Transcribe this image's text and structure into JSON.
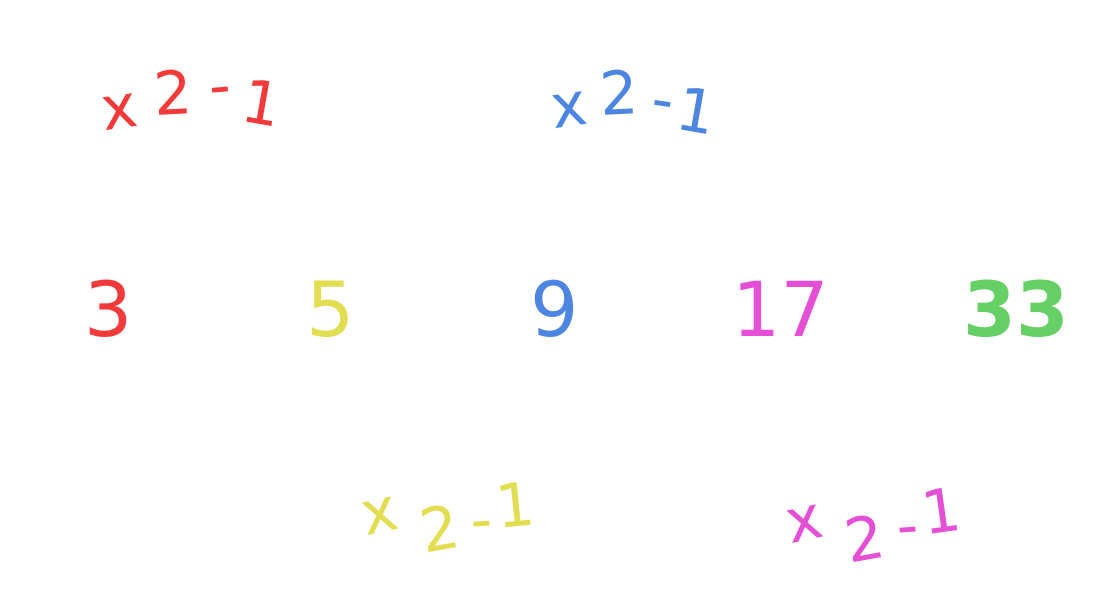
{
  "sequence": [
    {
      "value": "3",
      "color": "#f23a3a"
    },
    {
      "value": "5",
      "color": "#e3dd52"
    },
    {
      "value": "9",
      "color": "#4d86e0"
    },
    {
      "value": "17",
      "color": "#e44fd6"
    },
    {
      "value": "33",
      "color": "#66cf66"
    }
  ],
  "operations": [
    {
      "times": "x",
      "factor": "2",
      "minus": "-",
      "subtrahend": "1",
      "color": "#f23a3a"
    },
    {
      "times": "x",
      "factor": "2",
      "minus": "-",
      "subtrahend": "1",
      "color": "#e3dd52"
    },
    {
      "times": "x",
      "factor": "2",
      "minus": "-",
      "subtrahend": "1",
      "color": "#4d86e0"
    },
    {
      "times": "x",
      "factor": "2",
      "minus": "-",
      "subtrahend": "1",
      "color": "#e44fd6"
    }
  ]
}
